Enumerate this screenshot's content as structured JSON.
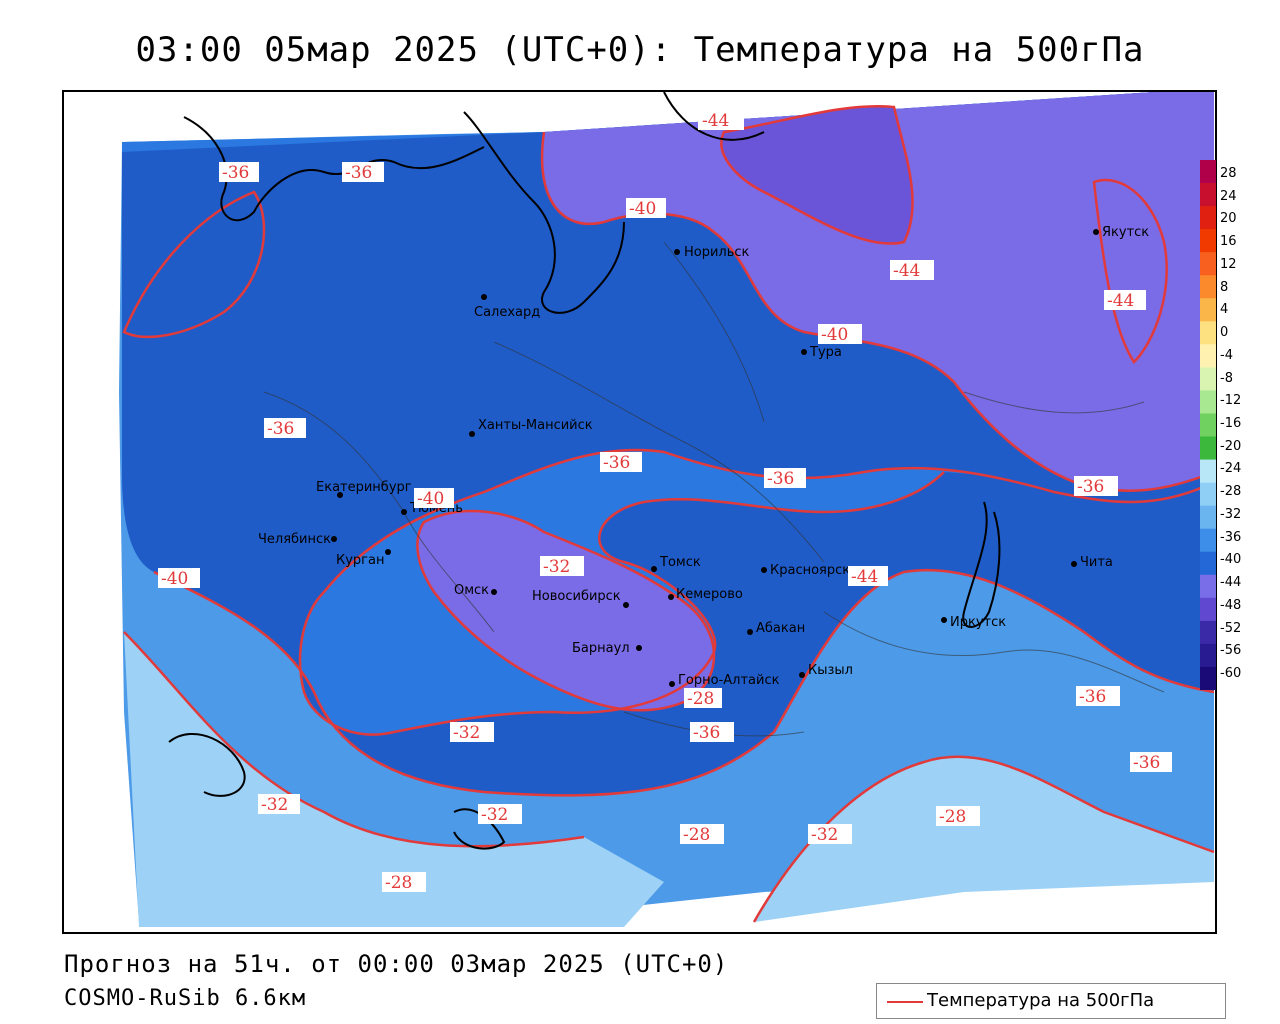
{
  "title": "03:00 05мар 2025 (UTC+0): Температура на 500гПа",
  "footer": {
    "forecast": "Прогноз на 51ч. от 00:00 03мар 2025 (UTC+0)",
    "model": "COSMO-RuSib 6.6км"
  },
  "legend": {
    "label": "Температура на 500гПа",
    "color": "#e23a3a"
  },
  "colorbar": {
    "ticks": [
      "28",
      "24",
      "20",
      "16",
      "12",
      "8",
      "4",
      "0",
      "-4",
      "-8",
      "-12",
      "-16",
      "-20",
      "-24",
      "-28",
      "-32",
      "-36",
      "-40",
      "-44",
      "-48",
      "-52",
      "-56",
      "-60"
    ],
    "colors": [
      "#b0004a",
      "#c8102e",
      "#e02010",
      "#f03a00",
      "#f86020",
      "#fa8a2c",
      "#fbb64a",
      "#fde080",
      "#fff2b0",
      "#d8f4b0",
      "#a8e890",
      "#70d060",
      "#3cb83c",
      "#b8e8f8",
      "#90cff5",
      "#6ab4f0",
      "#3c8ee8",
      "#2468d8",
      "#7a6ee8",
      "#6048d0",
      "#3a2aa8",
      "#281a90",
      "#1a0a78"
    ]
  },
  "contour_labels": [
    "-44",
    "-36",
    "-36",
    "-40",
    "-44",
    "-44",
    "-40",
    "-36",
    "-36",
    "-36",
    "-40",
    "-36",
    "-40",
    "-32",
    "-44",
    "-32",
    "-36",
    "-36",
    "-36",
    "-32",
    "-32",
    "-28",
    "-32",
    "-28",
    "-28",
    "-28"
  ],
  "cities": [
    "Норильск",
    "Якутск",
    "Салехард",
    "Тура",
    "Ханты-Мансийск",
    "Екатеринбург",
    "Тюмень",
    "Челябинск",
    "Курган",
    "Омск",
    "Томск",
    "Новосибирск",
    "Кемерово",
    "Красноярск",
    "Барнаул",
    "Абакан",
    "Иркутск",
    "Чита",
    "Горно-Алтайск",
    "Кызыл"
  ],
  "colors": {
    "t_m28": "#9dd2f6",
    "t_m32": "#4c9ae8",
    "t_m36": "#2a78e0",
    "t_m40": "#1f5cc8",
    "t_m44": "#7a6ce6",
    "t_m48": "#6a54d8",
    "contour": "#e23a3a"
  }
}
